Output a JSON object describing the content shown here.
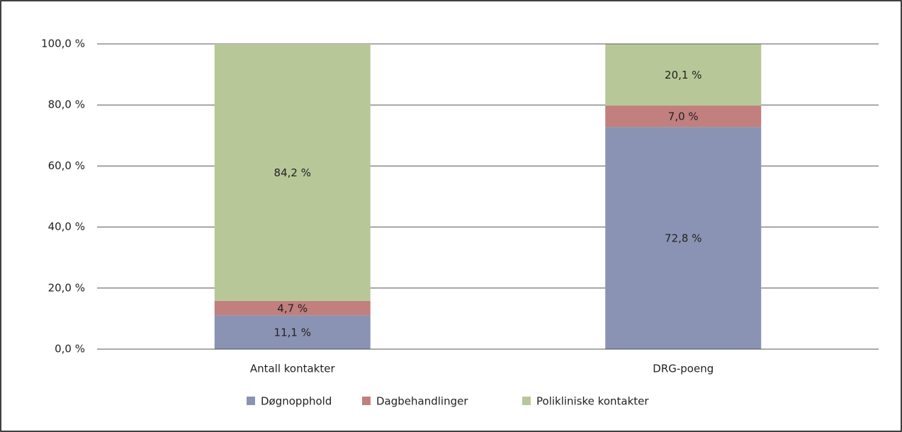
{
  "chart_data": {
    "type": "stacked_bar",
    "categories": [
      "Antall kontakter",
      "DRG-poeng"
    ],
    "series": [
      {
        "name": "Døgnopphold",
        "color": "#8a93b3",
        "values": [
          11.1,
          72.8
        ],
        "value_labels": [
          "11,1 %",
          "72,8 %"
        ]
      },
      {
        "name": "Dagbehandlinger",
        "color": "#c17f7e",
        "values": [
          4.7,
          7.0
        ],
        "value_labels": [
          "4,7 %",
          "7,0 %"
        ]
      },
      {
        "name": "Polikliniske kontakter",
        "color": "#b8c797",
        "values": [
          84.2,
          20.1
        ],
        "value_labels": [
          "84,2 %",
          "20,1 %"
        ]
      }
    ],
    "ylim": [
      0,
      100
    ],
    "yticks": [
      {
        "value": 0,
        "label": "0,0 %"
      },
      {
        "value": 20,
        "label": "20,0 %"
      },
      {
        "value": 40,
        "label": "40,0 %"
      },
      {
        "value": 60,
        "label": "60,0 %"
      },
      {
        "value": 80,
        "label": "80,0 %"
      },
      {
        "value": 100,
        "label": "100,0 %"
      }
    ],
    "grid": true,
    "legend": "bottom"
  }
}
